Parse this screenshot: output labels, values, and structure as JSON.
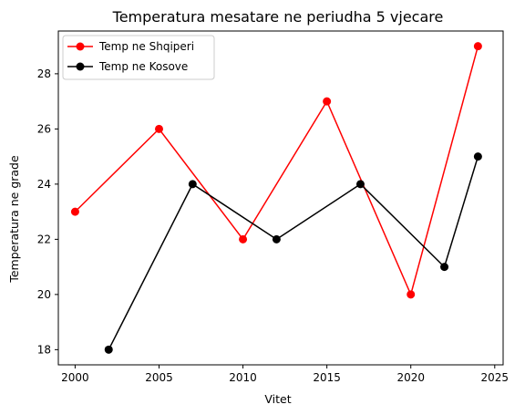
{
  "chart_data": {
    "type": "line",
    "title": "Temperatura mesatare ne periudha 5 vjecare",
    "xlabel": "Vitet",
    "ylabel": "Temperatura ne grade",
    "xlim": [
      1999,
      2025.5
    ],
    "ylim": [
      17.45,
      29.55
    ],
    "xticks": [
      2000,
      2005,
      2010,
      2015,
      2020,
      2025
    ],
    "yticks": [
      18,
      20,
      22,
      24,
      26,
      28
    ],
    "grid": false,
    "legend": "top-left",
    "series": [
      {
        "name": "Temp ne Shqiperi",
        "color": "#ff0000",
        "marker": "circle",
        "x": [
          2000,
          2005,
          2010,
          2015,
          2020,
          2024
        ],
        "y": [
          23,
          26,
          22,
          27,
          20,
          29
        ]
      },
      {
        "name": "Temp ne Kosove",
        "color": "#000000",
        "marker": "circle",
        "x": [
          2002,
          2007,
          2012,
          2017,
          2022,
          2024
        ],
        "y": [
          18,
          24,
          22,
          24,
          21,
          25
        ]
      }
    ]
  }
}
